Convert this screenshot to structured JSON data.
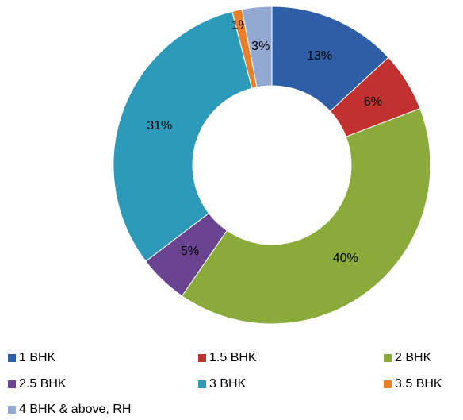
{
  "chart_data": {
    "type": "donut",
    "categories": [
      "1 BHK",
      "1.5 BHK",
      "2 BHK",
      "2.5 BHK",
      "3 BHK",
      "3.5 BHK",
      "4 BHK & above, RH"
    ],
    "values": [
      13,
      6,
      40,
      5,
      31,
      1,
      3
    ],
    "value_labels": [
      "13%",
      "6%",
      "40%",
      "5%",
      "31%",
      "1%",
      "3%"
    ],
    "colors": [
      "#2e5fa6",
      "#c0312f",
      "#8aab3a",
      "#6a4391",
      "#2e9ab9",
      "#e8802a",
      "#93a9d4"
    ],
    "legend": "bottom"
  }
}
